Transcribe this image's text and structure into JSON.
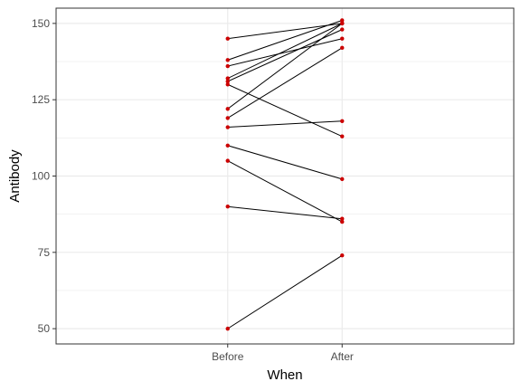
{
  "chart_data": {
    "type": "line",
    "xlabel": "When",
    "ylabel": "Antibody",
    "categories": [
      "Before",
      "After"
    ],
    "ylim": [
      45,
      155
    ],
    "yticks": [
      50,
      75,
      100,
      125,
      150
    ],
    "grid": true,
    "line_color": "#000000",
    "point_color": "#cc0000",
    "pairs": [
      {
        "before": 145,
        "after": 150
      },
      {
        "before": 138,
        "after": 151
      },
      {
        "before": 136,
        "after": 145
      },
      {
        "before": 132,
        "after": 150
      },
      {
        "before": 131,
        "after": 148
      },
      {
        "before": 130,
        "after": 113
      },
      {
        "before": 122,
        "after": 150
      },
      {
        "before": 119,
        "after": 142
      },
      {
        "before": 116,
        "after": 118
      },
      {
        "before": 110,
        "after": 99
      },
      {
        "before": 105,
        "after": 85
      },
      {
        "before": 90,
        "after": 86
      },
      {
        "before": 50,
        "after": 74
      }
    ]
  }
}
